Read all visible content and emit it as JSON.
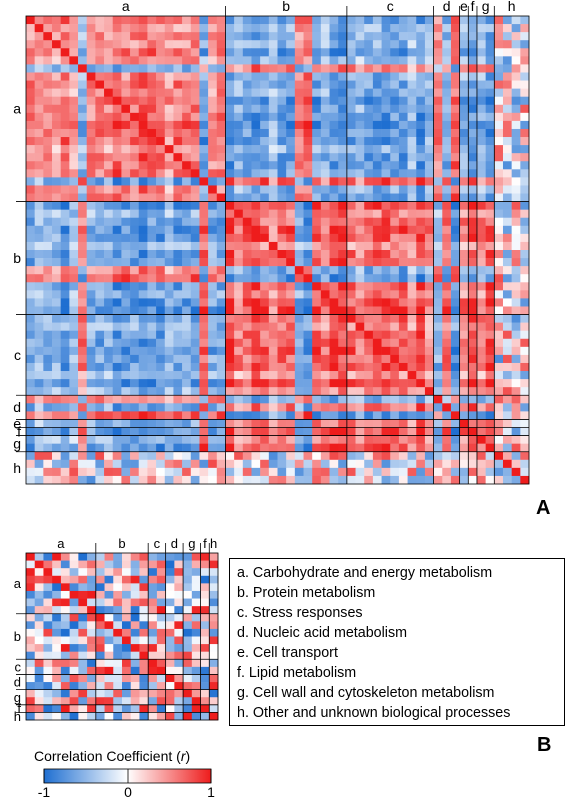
{
  "figure": {
    "panel_a_letter": "A",
    "panel_b_letter": "B"
  },
  "legend": {
    "items": [
      "a. Carbohydrate and energy metabolism",
      "b. Protein metabolism",
      "c. Stress responses",
      "d. Nucleic acid metabolism",
      "e. Cell transport",
      "f.  Lipid metabolism",
      "g. Cell wall and cytoskeleton metabolism",
      "h. Other and unknown biological processes"
    ]
  },
  "colorbar": {
    "title_prefix": "Correlation Coefficient (",
    "title_var": "r",
    "title_suffix": ")",
    "ticks": [
      "-1",
      "0",
      "1"
    ],
    "min_color": "#1f6fd1",
    "mid_color": "#ffffff",
    "max_color": "#ee1c1c"
  },
  "chart_data": [
    {
      "type": "heatmap",
      "panel": "A",
      "value_range": [
        -1,
        1
      ],
      "groups": [
        {
          "label": "a",
          "size": 23
        },
        {
          "label": "b",
          "size": 14
        },
        {
          "label": "c",
          "size": 10
        },
        {
          "label": "d",
          "size": 3
        },
        {
          "label": "e",
          "size": 1
        },
        {
          "label": "f",
          "size": 1
        },
        {
          "label": "g",
          "size": 2
        },
        {
          "label": "h",
          "size": 4
        }
      ],
      "group_pattern": {
        "a": 1,
        "b": -1,
        "c": -1,
        "d": -1,
        "e": -1,
        "f": -1,
        "g": -1,
        "h": 0
      },
      "note": "Group a anti-correlated with groups b-g; groups b-g mutually positively correlated"
    },
    {
      "type": "heatmap",
      "panel": "B",
      "value_range": [
        -1,
        1
      ],
      "groups": [
        {
          "label": "a",
          "size": 8
        },
        {
          "label": "b",
          "size": 6
        },
        {
          "label": "c",
          "size": 2
        },
        {
          "label": "d",
          "size": 2
        },
        {
          "label": "g",
          "size": 2
        },
        {
          "label": "f",
          "size": 1
        },
        {
          "label": "h",
          "size": 1
        }
      ],
      "note": "Weaker block structure, mixed positive and negative correlations"
    }
  ]
}
